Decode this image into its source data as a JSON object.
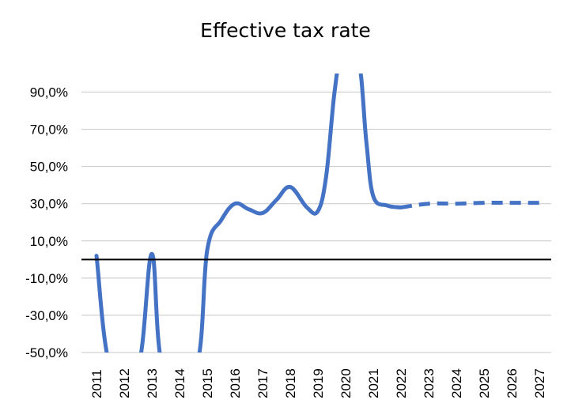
{
  "chart_data": {
    "type": "line",
    "title": "Effective tax rate",
    "xlabel": "",
    "ylabel": "",
    "ylim": [
      -50,
      100
    ],
    "grid": true,
    "legend": "none",
    "categories": [
      "2011",
      "2012",
      "2013",
      "2014",
      "2015",
      "2016",
      "2017",
      "2018",
      "2019",
      "2020",
      "2021",
      "2022",
      "2023",
      "2024",
      "2025",
      "2026",
      "2027"
    ],
    "y_ticks": [
      -50,
      -30,
      -10,
      10,
      30,
      50,
      70,
      90
    ],
    "y_tick_labels": [
      "-50,0%",
      "-30,0%",
      "-10,0%",
      "10,0%",
      "30,0%",
      "50,0%",
      "70,0%",
      "90,0%"
    ],
    "reference_line_value": 0,
    "series": [
      {
        "style": "solid",
        "color": "#4472C4",
        "points": [
          {
            "x": 2011.0,
            "y": 2
          },
          {
            "x": 2011.5,
            "y": -50
          },
          {
            "x": 2012.5,
            "y": -50
          },
          {
            "x": 2013.0,
            "y": 3
          },
          {
            "x": 2013.4,
            "y": -50
          },
          {
            "x": 2014.6,
            "y": -50
          },
          {
            "x": 2015.0,
            "y": 5
          },
          {
            "x": 2015.5,
            "y": 21
          },
          {
            "x": 2016.0,
            "y": 30
          },
          {
            "x": 2016.5,
            "y": 27
          },
          {
            "x": 2017.0,
            "y": 25
          },
          {
            "x": 2017.5,
            "y": 32
          },
          {
            "x": 2018.0,
            "y": 39
          },
          {
            "x": 2018.6,
            "y": 28
          },
          {
            "x": 2019.0,
            "y": 26
          },
          {
            "x": 2019.3,
            "y": 45
          },
          {
            "x": 2019.6,
            "y": 90
          },
          {
            "x": 2019.85,
            "y": 100
          },
          {
            "x": 2020.45,
            "y": 100
          },
          {
            "x": 2020.75,
            "y": 63
          },
          {
            "x": 2021.0,
            "y": 34
          },
          {
            "x": 2021.5,
            "y": 29
          },
          {
            "x": 2022.0,
            "y": 28
          }
        ]
      },
      {
        "style": "dashed",
        "color": "#4472C4",
        "points": [
          {
            "x": 2022.0,
            "y": 28
          },
          {
            "x": 2023.0,
            "y": 30
          },
          {
            "x": 2024.0,
            "y": 30
          },
          {
            "x": 2025.0,
            "y": 30.5
          },
          {
            "x": 2026.0,
            "y": 30.5
          },
          {
            "x": 2027.0,
            "y": 30.5
          }
        ]
      }
    ]
  },
  "colors": {
    "line": "#4472C4",
    "grid": "#c8c8c8",
    "reference": "#000000"
  }
}
